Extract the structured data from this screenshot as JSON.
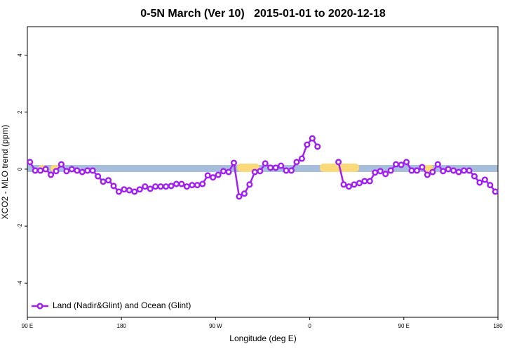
{
  "chart_data": {
    "type": "line",
    "title": "0-5N March (Ver 10)   2015-01-01 to 2020-12-18",
    "xlabel": "Longitude (deg E)",
    "ylabel": "XCO2 - MLO trend (ppm)",
    "x": [
      92.5,
      97.5,
      102.5,
      107.5,
      112.5,
      117.5,
      122.5,
      127.5,
      132.5,
      137.5,
      142.5,
      147.5,
      152.5,
      157.5,
      162.5,
      167.5,
      172.5,
      177.5,
      182.5,
      187.5,
      192.5,
      197.5,
      202.5,
      207.5,
      212.5,
      217.5,
      222.5,
      227.5,
      232.5,
      237.5,
      242.5,
      247.5,
      252.5,
      257.5,
      262.5,
      267.5,
      272.5,
      277.5,
      282.5,
      287.5,
      292.5,
      297.5,
      302.5,
      307.5,
      312.5,
      317.5,
      322.5,
      327.5,
      332.5,
      337.5,
      342.5,
      347.5,
      352.5,
      357.5,
      362.5,
      367.5,
      372.5,
      377.5,
      382.5,
      387.5,
      392.5,
      397.5,
      402.5,
      407.5,
      412.5,
      417.5,
      422.5,
      427.5,
      432.5,
      437.5,
      442.5,
      447.5,
      452.5,
      457.5,
      462.5,
      467.5,
      472.5,
      477.5,
      482.5,
      487.5,
      492.5,
      497.5,
      502.5,
      507.5,
      512.5,
      517.5,
      522.5,
      527.5,
      532.5,
      537.5
    ],
    "series": [
      {
        "name": "Land (Nadir&Glint) and Ocean (Glint)",
        "color": "#a020f0",
        "values": [
          0.25,
          -0.05,
          -0.05,
          0,
          -0.2,
          -0.07,
          0.17,
          -0.07,
          0,
          -0.05,
          -0.1,
          -0.05,
          -0.05,
          -0.25,
          -0.44,
          -0.39,
          -0.59,
          -0.79,
          -0.71,
          -0.74,
          -0.79,
          -0.71,
          -0.61,
          -0.69,
          -0.61,
          -0.61,
          -0.61,
          -0.59,
          -0.52,
          -0.52,
          -0.61,
          -0.56,
          -0.56,
          -0.52,
          -0.22,
          -0.29,
          -0.2,
          -0.07,
          -0.1,
          0.22,
          -0.96,
          -0.86,
          -0.54,
          -0.1,
          -0.07,
          0.2,
          0.05,
          0.05,
          0.12,
          -0.05,
          -0.05,
          0.25,
          0.37,
          0.86,
          1.08,
          0.79,
          null,
          null,
          null,
          0.25,
          -0.54,
          -0.61,
          -0.54,
          -0.49,
          -0.42,
          -0.42,
          -0.12,
          -0.07,
          -0.17,
          -0.05,
          0.17,
          0.15,
          0.25,
          -0.05,
          -0.05,
          0.07,
          -0.2,
          -0.1,
          0.17,
          -0.07,
          0,
          -0.05,
          -0.1,
          -0.05,
          -0.05,
          -0.25,
          -0.47,
          -0.37,
          -0.56,
          -0.79
        ]
      }
    ],
    "xlim": [
      90,
      540
    ],
    "xticks": [
      {
        "value": 90,
        "label": "90 E"
      },
      {
        "value": 180,
        "label": "180"
      },
      {
        "value": 270,
        "label": "90 W"
      },
      {
        "value": 360,
        "label": "0"
      },
      {
        "value": 450,
        "label": "90 E"
      },
      {
        "value": 540,
        "label": "180"
      }
    ],
    "ylim": [
      -5.2,
      5
    ],
    "yticks": [
      -4,
      -2,
      0,
      2,
      4
    ],
    "legend": "lower left"
  }
}
